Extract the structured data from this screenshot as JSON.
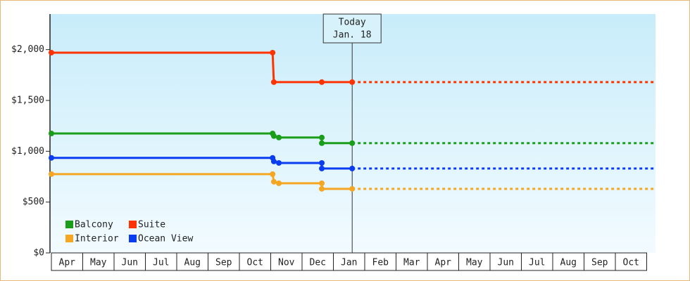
{
  "chart_data": {
    "type": "line",
    "categories": [
      "Apr",
      "May",
      "Jun",
      "Jul",
      "Aug",
      "Sep",
      "Oct",
      "Nov",
      "Dec",
      "Jan",
      "Feb",
      "Mar",
      "Apr",
      "May",
      "Jun",
      "Jul",
      "Aug",
      "Sep",
      "Oct"
    ],
    "xlim": [
      0,
      19.28
    ],
    "ylim": [
      0,
      2350
    ],
    "yticks": [
      {
        "value": 0,
        "label": "$0"
      },
      {
        "value": 500,
        "label": "$500"
      },
      {
        "value": 1000,
        "label": "$1,000"
      },
      {
        "value": 1500,
        "label": "$1,500"
      },
      {
        "value": 2000,
        "label": "$2,000"
      }
    ],
    "annotation": {
      "x": 9.6,
      "lines": [
        "Today",
        "Jan. 18"
      ]
    },
    "series": [
      {
        "name": "Balcony",
        "color": "#1a9e1a",
        "x": [
          0,
          7.06,
          7.1,
          7.26,
          8.63,
          8.63,
          9.6
        ],
        "values": [
          1175,
          1175,
          1150,
          1135,
          1135,
          1080,
          1080
        ]
      },
      {
        "name": "Suite",
        "color": "#ff3300",
        "x": [
          0,
          7.06,
          7.1,
          8.63,
          9.6
        ],
        "values": [
          1970,
          1970,
          1680,
          1680,
          1680
        ]
      },
      {
        "name": "Interior",
        "color": "#f5a623",
        "x": [
          0,
          7.06,
          7.1,
          7.26,
          8.63,
          8.63,
          9.6
        ],
        "values": [
          775,
          775,
          700,
          685,
          685,
          630,
          630
        ]
      },
      {
        "name": "Ocean View",
        "color": "#0a3cf0",
        "x": [
          0,
          7.06,
          7.1,
          7.26,
          8.63,
          8.63,
          9.6
        ],
        "values": [
          935,
          935,
          900,
          885,
          885,
          830,
          830
        ]
      }
    ]
  }
}
